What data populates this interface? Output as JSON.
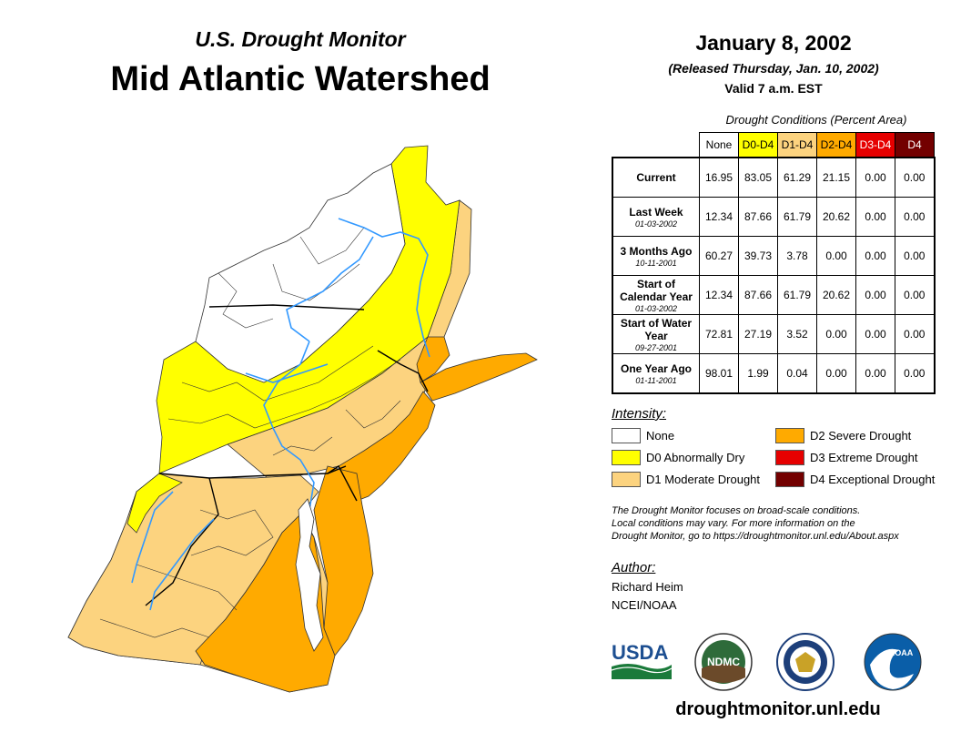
{
  "header": {
    "subtitle": "U.S. Drought Monitor",
    "title": "Mid Atlantic Watershed",
    "date": "January 8, 2002",
    "released": "(Released Thursday, Jan. 10, 2002)",
    "valid": "Valid 7 a.m. EST"
  },
  "table": {
    "caption": "Drought Conditions (Percent Area)",
    "columns": [
      "None",
      "D0-D4",
      "D1-D4",
      "D2-D4",
      "D3-D4",
      "D4"
    ],
    "column_colors": [
      "#ffffff",
      "#ffff00",
      "#fcd37f",
      "#ffaa00",
      "#e60000",
      "#730000"
    ],
    "rows": [
      {
        "label": "Current",
        "date": "",
        "values": [
          "16.95",
          "83.05",
          "61.29",
          "21.15",
          "0.00",
          "0.00"
        ]
      },
      {
        "label": "Last Week",
        "date": "01-03-2002",
        "values": [
          "12.34",
          "87.66",
          "61.79",
          "20.62",
          "0.00",
          "0.00"
        ]
      },
      {
        "label": "3 Months Ago",
        "date": "10-11-2001",
        "values": [
          "60.27",
          "39.73",
          "3.78",
          "0.00",
          "0.00",
          "0.00"
        ]
      },
      {
        "label": "Start of Calendar Year",
        "date": "01-03-2002",
        "values": [
          "12.34",
          "87.66",
          "61.79",
          "20.62",
          "0.00",
          "0.00"
        ]
      },
      {
        "label": "Start of Water Year",
        "date": "09-27-2001",
        "values": [
          "72.81",
          "27.19",
          "3.52",
          "0.00",
          "0.00",
          "0.00"
        ]
      },
      {
        "label": "One Year Ago",
        "date": "01-11-2001",
        "values": [
          "98.01",
          "1.99",
          "0.04",
          "0.00",
          "0.00",
          "0.00"
        ]
      }
    ]
  },
  "legend": {
    "title": "Intensity:",
    "items": [
      {
        "label": "None",
        "color": "#ffffff"
      },
      {
        "label": "D0 Abnormally Dry",
        "color": "#ffff00"
      },
      {
        "label": "D1 Moderate Drought",
        "color": "#fcd37f"
      },
      {
        "label": "D2 Severe Drought",
        "color": "#ffaa00"
      },
      {
        "label": "D3 Extreme Drought",
        "color": "#e60000"
      },
      {
        "label": "D4 Exceptional Drought",
        "color": "#730000"
      }
    ]
  },
  "note": {
    "line1": "The Drought Monitor focuses on broad-scale conditions.",
    "line2": "Local conditions may vary. For more information on the",
    "line3": "Drought Monitor, go to https://droughtmonitor.unl.edu/About.aspx"
  },
  "author": {
    "title": "Author:",
    "name": "Richard Heim",
    "org": "NCEI/NOAA"
  },
  "logos": {
    "usda": "USDA",
    "ndmc": "NDMC",
    "noaa": "NOAA"
  },
  "url": "droughtmonitor.unl.edu",
  "map": {
    "colors": {
      "none": "#ffffff",
      "d0": "#ffff00",
      "d1": "#fcd37f",
      "d2": "#ffaa00",
      "water": "#3399ff"
    }
  }
}
